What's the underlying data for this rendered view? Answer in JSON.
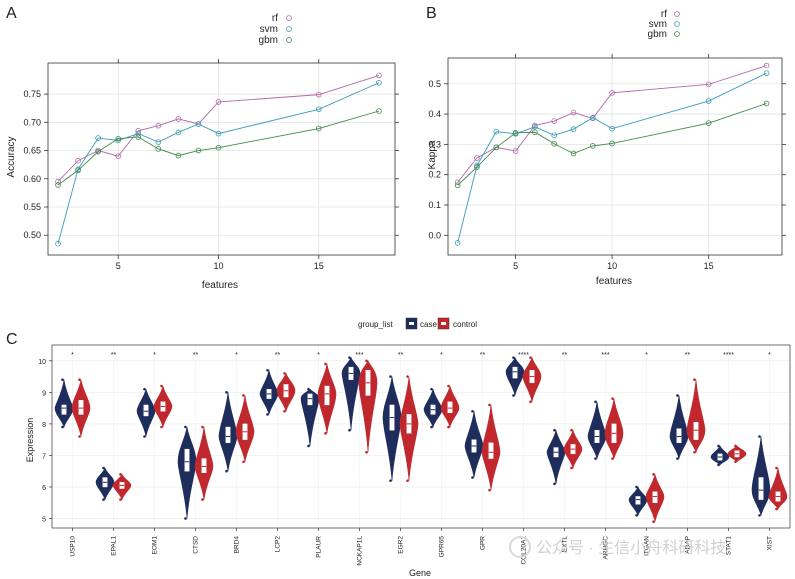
{
  "panels": [
    {
      "letter": "A",
      "chart_data": {
        "type": "line",
        "xlabel": "features",
        "ylabel": "Accuracy",
        "xlim": [
          1.5,
          18.8
        ],
        "ylim": [
          0.465,
          0.805
        ],
        "xticks": [
          5,
          10,
          15
        ],
        "yticks": [
          0.5,
          0.55,
          0.6,
          0.65,
          0.7,
          0.75
        ],
        "grid": true,
        "legend_position": "top-center",
        "x": [
          2,
          3,
          4,
          5,
          6,
          7,
          8,
          9,
          10,
          15,
          18
        ],
        "series": [
          {
            "name": "rf",
            "color": "#b06aa9",
            "values": [
              0.595,
              0.632,
              0.65,
              0.64,
              0.685,
              0.694,
              0.706,
              0.697,
              0.736,
              0.749,
              0.783
            ]
          },
          {
            "name": "svm",
            "color": "#3a9bb8",
            "values": [
              0.485,
              0.617,
              0.672,
              0.668,
              0.68,
              0.665,
              0.682,
              0.697,
              0.68,
              0.723,
              0.77
            ]
          },
          {
            "name": "gbm",
            "color": "#3f8a4b",
            "values": [
              0.589,
              0.615,
              0.648,
              0.671,
              0.674,
              0.653,
              0.641,
              0.65,
              0.655,
              0.689,
              0.72
            ]
          }
        ]
      }
    },
    {
      "letter": "B",
      "chart_data": {
        "type": "line",
        "xlabel": "features",
        "ylabel": "Kappa",
        "xlim": [
          1.5,
          18.8
        ],
        "ylim": [
          -0.065,
          0.585
        ],
        "xticks": [
          5,
          10,
          15
        ],
        "yticks": [
          0.0,
          0.1,
          0.2,
          0.3,
          0.4,
          0.5
        ],
        "grid": true,
        "legend_position": "top-center",
        "x": [
          2,
          3,
          4,
          5,
          6,
          7,
          8,
          9,
          10,
          15,
          18
        ],
        "series": [
          {
            "name": "rf",
            "color": "#b06aa9",
            "values": [
              0.175,
              0.255,
              0.29,
              0.278,
              0.362,
              0.377,
              0.405,
              0.386,
              0.47,
              0.498,
              0.56
            ]
          },
          {
            "name": "svm",
            "color": "#3a9bb8",
            "values": [
              -0.025,
              0.23,
              0.342,
              0.335,
              0.358,
              0.33,
              0.35,
              0.388,
              0.352,
              0.443,
              0.535
            ]
          },
          {
            "name": "gbm",
            "color": "#3f8a4b",
            "values": [
              0.165,
              0.225,
              0.29,
              0.338,
              0.34,
              0.302,
              0.27,
              0.295,
              0.303,
              0.37,
              0.435
            ]
          }
        ]
      }
    }
  ],
  "panel_c": {
    "letter": "C",
    "legend_title": "group_list",
    "chart_data": {
      "type": "violin",
      "xlabel": "Gene",
      "ylabel": "Expression",
      "ylim": [
        4.7,
        10.5
      ],
      "yticks": [
        5,
        6,
        7,
        8,
        9,
        10
      ],
      "grid": true,
      "legend_position": "top-center",
      "series_names": [
        "case",
        "control"
      ],
      "colors": {
        "case": "#1f2d5c",
        "control": "#c0282e"
      },
      "genes": [
        {
          "name": "USP10",
          "sig": "*",
          "case": {
            "min": 7.9,
            "max": 9.4,
            "median": 8.5,
            "q1": 8.3,
            "q3": 8.6
          },
          "control": {
            "min": 7.6,
            "max": 9.4,
            "median": 8.5,
            "q1": 8.3,
            "q3": 8.75
          }
        },
        {
          "name": "EPAL1",
          "sig": "**",
          "case": {
            "min": 5.6,
            "max": 6.6,
            "median": 6.15,
            "q1": 6.0,
            "q3": 6.3
          },
          "control": {
            "min": 5.6,
            "max": 6.4,
            "median": 6.05,
            "q1": 5.95,
            "q3": 6.15
          }
        },
        {
          "name": "EOM1",
          "sig": "*",
          "case": {
            "min": 7.6,
            "max": 9.1,
            "median": 8.4,
            "q1": 8.25,
            "q3": 8.6
          },
          "control": {
            "min": 7.9,
            "max": 9.2,
            "median": 8.55,
            "q1": 8.4,
            "q3": 8.7
          }
        },
        {
          "name": "CTSD",
          "sig": "**",
          "case": {
            "min": 5.0,
            "max": 7.9,
            "median": 6.8,
            "q1": 6.5,
            "q3": 7.2
          },
          "control": {
            "min": 5.6,
            "max": 7.9,
            "median": 6.65,
            "q1": 6.45,
            "q3": 6.9
          }
        },
        {
          "name": "BRD4",
          "sig": "*",
          "case": {
            "min": 6.5,
            "max": 9.0,
            "median": 7.6,
            "q1": 7.4,
            "q3": 7.9
          },
          "control": {
            "min": 6.8,
            "max": 8.9,
            "median": 7.75,
            "q1": 7.5,
            "q3": 8.0
          }
        },
        {
          "name": "LCP2",
          "sig": "**",
          "case": {
            "min": 8.3,
            "max": 9.7,
            "median": 8.95,
            "q1": 8.8,
            "q3": 9.1
          },
          "control": {
            "min": 8.4,
            "max": 9.6,
            "median": 9.05,
            "q1": 8.85,
            "q3": 9.25
          }
        },
        {
          "name": "PLAUR",
          "sig": "*",
          "case": {
            "min": 7.3,
            "max": 9.1,
            "median": 8.8,
            "q1": 8.6,
            "q3": 8.95
          },
          "control": {
            "min": 7.7,
            "max": 9.9,
            "median": 8.95,
            "q1": 8.6,
            "q3": 9.2
          }
        },
        {
          "name": "NCKAP1L",
          "sig": "***",
          "case": {
            "min": 7.8,
            "max": 10.1,
            "median": 9.6,
            "q1": 9.4,
            "q3": 9.8
          },
          "control": {
            "min": 7.1,
            "max": 10.0,
            "median": 9.3,
            "q1": 8.9,
            "q3": 9.7
          }
        },
        {
          "name": "EGR2",
          "sig": "**",
          "case": {
            "min": 6.2,
            "max": 9.5,
            "median": 8.2,
            "q1": 7.8,
            "q3": 8.6
          },
          "control": {
            "min": 6.2,
            "max": 9.5,
            "median": 8.0,
            "q1": 7.7,
            "q3": 8.3
          }
        },
        {
          "name": "GPR65",
          "sig": "*",
          "case": {
            "min": 7.9,
            "max": 9.1,
            "median": 8.45,
            "q1": 8.3,
            "q3": 8.6
          },
          "control": {
            "min": 7.9,
            "max": 9.2,
            "median": 8.5,
            "q1": 8.35,
            "q3": 8.7
          }
        },
        {
          "name": "GPR",
          "sig": "**",
          "case": {
            "min": 6.3,
            "max": 8.4,
            "median": 7.3,
            "q1": 7.1,
            "q3": 7.5
          },
          "control": {
            "min": 5.9,
            "max": 8.6,
            "median": 7.1,
            "q1": 6.9,
            "q3": 7.4
          }
        },
        {
          "name": "COL20A1",
          "sig": "****",
          "case": {
            "min": 8.9,
            "max": 10.1,
            "median": 9.65,
            "q1": 9.45,
            "q3": 9.8
          },
          "control": {
            "min": 8.7,
            "max": 10.1,
            "median": 9.5,
            "q1": 9.3,
            "q3": 9.7
          }
        },
        {
          "name": "EXTL",
          "sig": "**",
          "case": {
            "min": 6.1,
            "max": 7.8,
            "median": 7.1,
            "q1": 6.95,
            "q3": 7.25
          },
          "control": {
            "min": 6.6,
            "max": 7.8,
            "median": 7.2,
            "q1": 7.05,
            "q3": 7.35
          }
        },
        {
          "name": "ARHGC",
          "sig": "***",
          "case": {
            "min": 6.9,
            "max": 8.7,
            "median": 7.6,
            "q1": 7.4,
            "q3": 7.8
          },
          "control": {
            "min": 6.9,
            "max": 8.8,
            "median": 7.7,
            "q1": 7.4,
            "q3": 8.0
          }
        },
        {
          "name": "ITGAN",
          "sig": "*",
          "case": {
            "min": 5.1,
            "max": 6.0,
            "median": 5.6,
            "q1": 5.45,
            "q3": 5.7
          },
          "control": {
            "min": 4.9,
            "max": 6.4,
            "median": 5.7,
            "q1": 5.5,
            "q3": 5.85
          }
        },
        {
          "name": "ADAP",
          "sig": "**",
          "case": {
            "min": 6.9,
            "max": 8.9,
            "median": 7.6,
            "q1": 7.4,
            "q3": 7.85
          },
          "control": {
            "min": 7.1,
            "max": 9.4,
            "median": 7.8,
            "q1": 7.5,
            "q3": 8.05
          }
        },
        {
          "name": "STAT1",
          "sig": "****",
          "case": {
            "min": 6.7,
            "max": 7.3,
            "median": 6.95,
            "q1": 6.85,
            "q3": 7.05
          },
          "control": {
            "min": 6.8,
            "max": 7.3,
            "median": 7.05,
            "q1": 6.95,
            "q3": 7.15
          }
        },
        {
          "name": "XIST",
          "sig": "*",
          "case": {
            "min": 5.1,
            "max": 7.6,
            "median": 5.9,
            "q1": 5.6,
            "q3": 6.3
          },
          "control": {
            "min": 5.3,
            "max": 6.6,
            "median": 5.7,
            "q1": 5.55,
            "q3": 5.85
          }
        }
      ]
    }
  },
  "watermark": "公众号 · 生信小舟科研科技"
}
